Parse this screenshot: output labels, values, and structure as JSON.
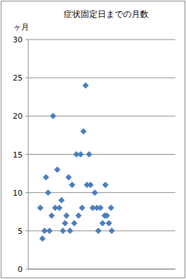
{
  "chart_data": {
    "type": "scatter",
    "title": "症状固定日までの月数",
    "y_label": "ヶ月",
    "x": [
      17,
      20,
      23,
      25,
      28,
      30,
      33,
      35,
      38,
      41,
      44,
      47,
      49,
      52,
      54,
      57,
      59,
      62,
      65,
      68,
      71,
      74,
      76,
      78,
      81,
      83,
      86,
      88,
      91,
      94,
      97,
      99,
      102,
      105,
      108,
      109,
      111,
      114,
      117,
      118
    ],
    "values": [
      8,
      4,
      5,
      12,
      10,
      5,
      7,
      20,
      8,
      13,
      8,
      9,
      5,
      6,
      7,
      12,
      5,
      11,
      6,
      15,
      7,
      15,
      8,
      18,
      24,
      11,
      15,
      11,
      8,
      10,
      8,
      5,
      8,
      6,
      7,
      11,
      7,
      6,
      8,
      5
    ],
    "color": "#4a7ebb",
    "marker": "diamond",
    "xlim": [
      0,
      208
    ],
    "ylim": [
      0,
      30
    ],
    "yticks": [
      0,
      5,
      10,
      15,
      20,
      25,
      30
    ],
    "grid": true,
    "tick_labels": "y"
  }
}
